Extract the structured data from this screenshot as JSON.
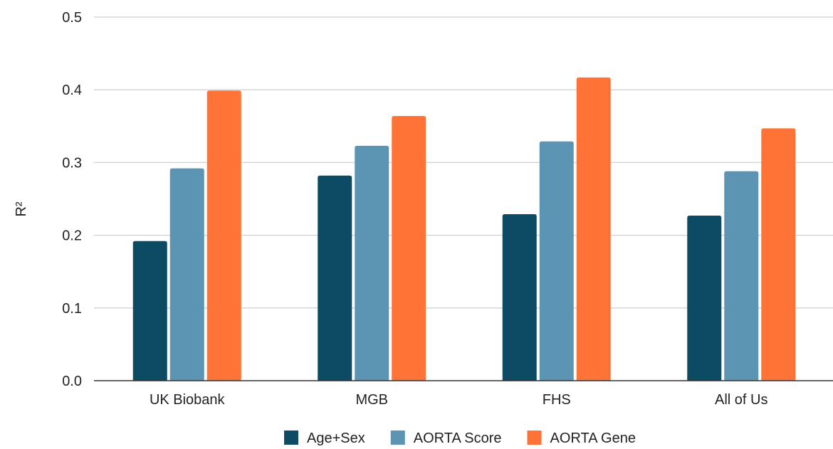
{
  "chart_data": {
    "type": "bar",
    "title": "",
    "xlabel": "",
    "ylabel": "R²",
    "ylim": [
      0,
      0.5
    ],
    "yticks": [
      "0.0",
      "0.1",
      "0.2",
      "0.3",
      "0.4",
      "0.5"
    ],
    "grid": true,
    "legend_position": "bottom",
    "categories": [
      "UK Biobank",
      "MGB",
      "FHS",
      "All of Us"
    ],
    "series": [
      {
        "name": "Age+Sex",
        "color": "#0d4a63",
        "values": [
          0.192,
          0.282,
          0.229,
          0.227
        ]
      },
      {
        "name": "AORTA Score",
        "color": "#5c94b3",
        "values": [
          0.292,
          0.323,
          0.329,
          0.288
        ]
      },
      {
        "name": "AORTA Gene",
        "color": "#ff7337",
        "values": [
          0.399,
          0.364,
          0.417,
          0.347
        ]
      }
    ]
  }
}
